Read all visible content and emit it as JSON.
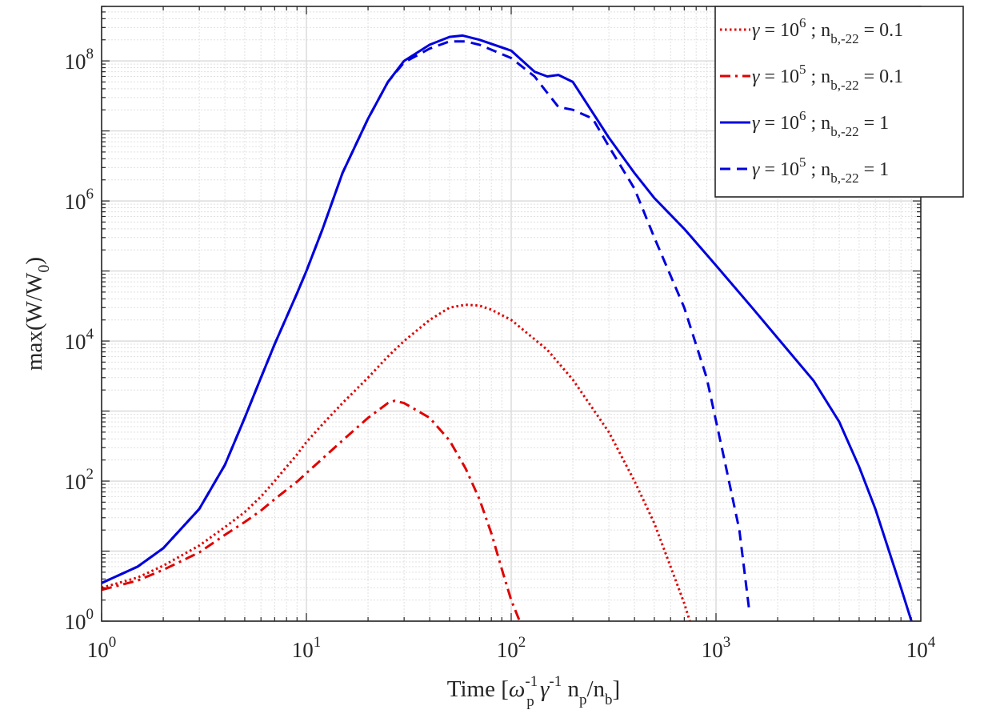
{
  "chart_data": {
    "type": "line",
    "title": "",
    "xscale": "log",
    "yscale": "log",
    "xlim": [
      1,
      10000
    ],
    "ylim": [
      1,
      600000000
    ],
    "grid": true,
    "minor_grid": true,
    "legend_position": "top-right",
    "xlabel": {
      "prefix": "Time [",
      "omega": "ω",
      "p_sub": "p",
      "neg1_sup": "-1",
      "gamma": "γ",
      "n": "n",
      "b_sub": "b",
      "slash": "/",
      "suffix": "]"
    },
    "ylabel": {
      "main": "max(W/W",
      "sub": "0",
      "close": ")"
    },
    "xticks": [
      {
        "value": 1,
        "base": "10",
        "exp": "0"
      },
      {
        "value": 10,
        "base": "10",
        "exp": "1"
      },
      {
        "value": 100,
        "base": "10",
        "exp": "2"
      },
      {
        "value": 1000,
        "base": "10",
        "exp": "3"
      },
      {
        "value": 10000,
        "base": "10",
        "exp": "4"
      }
    ],
    "yticks": [
      {
        "value": 1,
        "base": "10",
        "exp": "0"
      },
      {
        "value": 100,
        "base": "10",
        "exp": "2"
      },
      {
        "value": 10000,
        "base": "10",
        "exp": "4"
      },
      {
        "value": 1000000,
        "base": "10",
        "exp": "6"
      },
      {
        "value": 100000000,
        "base": "10",
        "exp": "8"
      }
    ],
    "series": [
      {
        "name": "γ = 10^6 ; n_b,-22 = 0.1",
        "legend": {
          "gamma": "γ",
          "eq": " = 10",
          "exp": "6",
          "mid": " ; n",
          "sub": "b,-22",
          "val": " = 0.1"
        },
        "color": "#e00000",
        "dash": "dotted",
        "points": [
          [
            1,
            3.0
          ],
          [
            1.5,
            4.2
          ],
          [
            2,
            6.2
          ],
          [
            3,
            12
          ],
          [
            4,
            22
          ],
          [
            5,
            36
          ],
          [
            6,
            60
          ],
          [
            7,
            100
          ],
          [
            8,
            160
          ],
          [
            9,
            240
          ],
          [
            10,
            360
          ],
          [
            12,
            650
          ],
          [
            15,
            1300
          ],
          [
            20,
            3000
          ],
          [
            25,
            6000
          ],
          [
            30,
            10000
          ],
          [
            40,
            20000
          ],
          [
            50,
            30000
          ],
          [
            60,
            33000
          ],
          [
            70,
            32000
          ],
          [
            80,
            28000
          ],
          [
            100,
            20000
          ],
          [
            150,
            7500
          ],
          [
            200,
            2800
          ],
          [
            300,
            500
          ],
          [
            400,
            100
          ],
          [
            500,
            25
          ],
          [
            600,
            6
          ],
          [
            700,
            1.8
          ],
          [
            745,
            1
          ]
        ]
      },
      {
        "name": "γ = 10^5 ; n_b,-22 = 0.1",
        "legend": {
          "gamma": "γ",
          "eq": " = 10",
          "exp": "5",
          "mid": " ; n",
          "sub": "b,-22",
          "val": " = 0.1"
        },
        "color": "#e00000",
        "dash": "dashdot",
        "points": [
          [
            1,
            2.8
          ],
          [
            1.5,
            3.8
          ],
          [
            2,
            5.4
          ],
          [
            3,
            9.6
          ],
          [
            4,
            17
          ],
          [
            5,
            26
          ],
          [
            6,
            38
          ],
          [
            7,
            55
          ],
          [
            8,
            75
          ],
          [
            9,
            98
          ],
          [
            10,
            130
          ],
          [
            12,
            210
          ],
          [
            15,
            380
          ],
          [
            20,
            800
          ],
          [
            25,
            1300
          ],
          [
            27,
            1400
          ],
          [
            30,
            1300
          ],
          [
            40,
            800
          ],
          [
            50,
            380
          ],
          [
            60,
            150
          ],
          [
            70,
            55
          ],
          [
            80,
            18
          ],
          [
            90,
            5.5
          ],
          [
            100,
            2
          ],
          [
            110,
            1
          ]
        ]
      },
      {
        "name": "γ = 10^6 ; n_b,-22 = 1",
        "legend": {
          "gamma": "γ",
          "eq": " = 10",
          "exp": "6",
          "mid": " ; n",
          "sub": "b,-22",
          "val": " = 1"
        },
        "color": "#0000dd",
        "dash": "solid",
        "points": [
          [
            1,
            3.5
          ],
          [
            1.5,
            6
          ],
          [
            2,
            11
          ],
          [
            3,
            40
          ],
          [
            4,
            170
          ],
          [
            5,
            800
          ],
          [
            6,
            3000
          ],
          [
            7,
            9000
          ],
          [
            8,
            22000
          ],
          [
            9,
            48000
          ],
          [
            10,
            100000
          ],
          [
            12,
            400000
          ],
          [
            15,
            2500000
          ],
          [
            20,
            15000000
          ],
          [
            25,
            50000000
          ],
          [
            30,
            100000000
          ],
          [
            40,
            170000000
          ],
          [
            50,
            220000000
          ],
          [
            58,
            230000000
          ],
          [
            70,
            200000000
          ],
          [
            100,
            140000000
          ],
          [
            130,
            70000000
          ],
          [
            150,
            60000000
          ],
          [
            170,
            63000000
          ],
          [
            200,
            50000000
          ],
          [
            300,
            8000000
          ],
          [
            400,
            2500000
          ],
          [
            500,
            1100000
          ],
          [
            700,
            400000
          ],
          [
            1000,
            120000
          ],
          [
            1500,
            30000
          ],
          [
            2000,
            11000
          ],
          [
            3000,
            2700
          ],
          [
            4000,
            700
          ],
          [
            5000,
            160
          ],
          [
            6000,
            40
          ],
          [
            7000,
            10
          ],
          [
            8000,
            3
          ],
          [
            9000,
            1
          ]
        ]
      },
      {
        "name": "γ = 10^5 ; n_b,-22 = 1",
        "legend": {
          "gamma": "γ",
          "eq": " = 10",
          "exp": "5",
          "mid": " ; n",
          "sub": "b,-22",
          "val": " = 1"
        },
        "color": "#0000dd",
        "dash": "dashed",
        "points": [
          [
            1,
            3.5
          ],
          [
            1.5,
            6
          ],
          [
            2,
            11
          ],
          [
            3,
            40
          ],
          [
            4,
            170
          ],
          [
            5,
            800
          ],
          [
            6,
            3000
          ],
          [
            7,
            9000
          ],
          [
            8,
            22000
          ],
          [
            9,
            48000
          ],
          [
            10,
            100000
          ],
          [
            12,
            400000
          ],
          [
            15,
            2500000
          ],
          [
            20,
            15000000
          ],
          [
            25,
            50000000
          ],
          [
            30,
            95000000
          ],
          [
            40,
            150000000
          ],
          [
            50,
            190000000
          ],
          [
            60,
            190000000
          ],
          [
            70,
            170000000
          ],
          [
            100,
            110000000
          ],
          [
            130,
            60000000
          ],
          [
            150,
            35000000
          ],
          [
            170,
            22000000
          ],
          [
            200,
            20000000
          ],
          [
            250,
            15000000
          ],
          [
            300,
            6000000
          ],
          [
            400,
            1500000
          ],
          [
            500,
            300000
          ],
          [
            700,
            30000
          ],
          [
            900,
            3000
          ],
          [
            1100,
            200
          ],
          [
            1300,
            20
          ],
          [
            1450,
            1.5
          ]
        ]
      }
    ]
  }
}
